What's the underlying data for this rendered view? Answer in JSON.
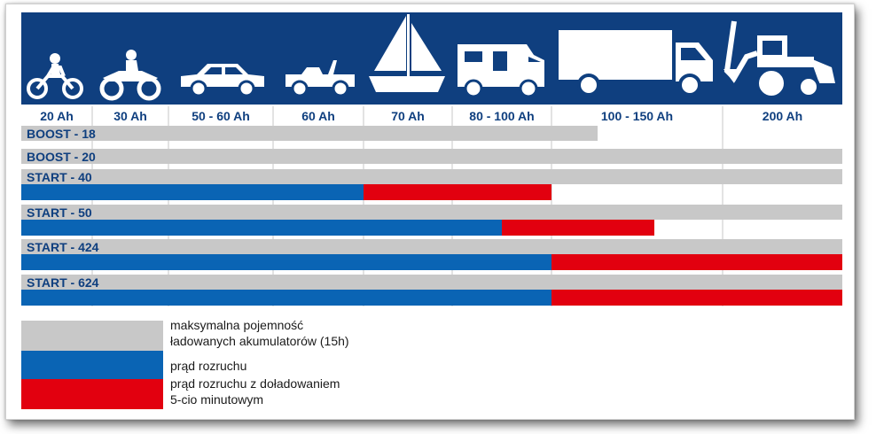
{
  "header": {
    "vehicle_icons": [
      "motorcycle-icon",
      "atv-icon",
      "car-icon",
      "jeep-icon",
      "sailboat-icon",
      "camper-icon",
      "truck-icon",
      "backhoe-icon"
    ]
  },
  "chart_data": {
    "type": "bar",
    "categories": [
      "20 Ah",
      "30 Ah",
      "50 - 60 Ah",
      "60 Ah",
      "70 Ah",
      "80 - 100 Ah",
      "100 - 150 Ah",
      "200 Ah"
    ],
    "rows": [
      {
        "name": "BOOST - 18",
        "grey_end": 6.27
      },
      {
        "name": "BOOST - 20",
        "grey_end": 8.0
      },
      {
        "name": "START - 40",
        "grey_end": 8.0,
        "blue_end": 4.0,
        "red_end": 6.0
      },
      {
        "name": "START - 50",
        "grey_end": 8.0,
        "blue_end": 5.5,
        "red_end": 6.6
      },
      {
        "name": "START - 424",
        "grey_end": 8.0,
        "blue_end": 6.0,
        "red_end": 8.0
      },
      {
        "name": "START - 624",
        "grey_end": 8.0,
        "blue_end": 6.0,
        "red_end": 8.0
      }
    ],
    "legend": [
      {
        "color": "#c8c8c8",
        "text": [
          "maksymalna pojemność",
          "ładowanych akumulatorów (15h)"
        ]
      },
      {
        "color": "#0a64b4",
        "text": [
          "prąd rozruchu"
        ]
      },
      {
        "color": "#e2000f",
        "text": [
          "prąd rozruchu z doładowaniem",
          "5-cio minutowym"
        ]
      }
    ],
    "colors": {
      "grey": "#c8c8c8",
      "blue": "#0a64b4",
      "red": "#e2000f",
      "header": "#0f3f7f"
    }
  }
}
